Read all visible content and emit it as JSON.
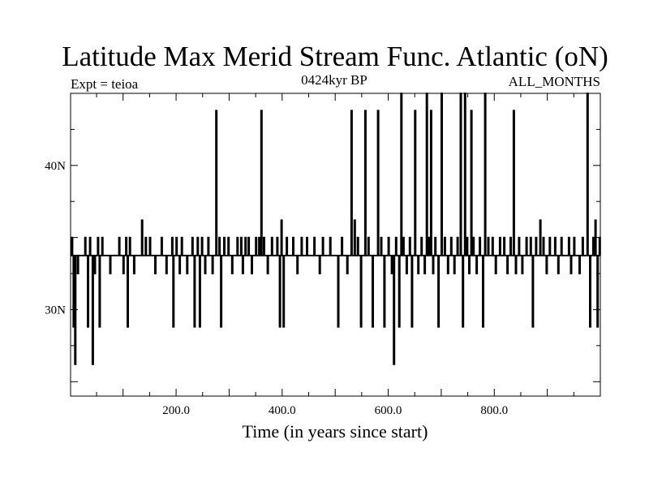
{
  "chart_data": {
    "type": "line",
    "title": "Latitude Max Merid Stream Func. Atlantic (oN)",
    "subtitle_left": "Expt = teioa",
    "subtitle_center": "0424kyr BP",
    "subtitle_right": "ALL_MONTHS",
    "xlabel": "Time (in years since start)",
    "ylabel": "",
    "xlim": [
      1,
      1000
    ],
    "ylim": [
      24,
      45
    ],
    "x_ticks": [
      {
        "value": 200,
        "label": "200.0"
      },
      {
        "value": 400,
        "label": "400.0"
      },
      {
        "value": 600,
        "label": "600.0"
      },
      {
        "value": 800,
        "label": "800.0"
      }
    ],
    "y_ticks": [
      {
        "value": 30,
        "label": "30N"
      },
      {
        "value": 40,
        "label": "40N"
      }
    ],
    "baseline": 33.75,
    "series": [
      {
        "color": "#000000",
        "excursions": [
          [
            3,
            35
          ],
          [
            6,
            28.8
          ],
          [
            9,
            26.2
          ],
          [
            14,
            32.5
          ],
          [
            28,
            35
          ],
          [
            33,
            28.8
          ],
          [
            37,
            35
          ],
          [
            42,
            26.2
          ],
          [
            46,
            32.5
          ],
          [
            52,
            35
          ],
          [
            55,
            28.8
          ],
          [
            60,
            35
          ],
          [
            75,
            32.5
          ],
          [
            92,
            35
          ],
          [
            100,
            32.5
          ],
          [
            105,
            35
          ],
          [
            108,
            28.8
          ],
          [
            112,
            35
          ],
          [
            120,
            32.5
          ],
          [
            135,
            36.2
          ],
          [
            142,
            35
          ],
          [
            150,
            35
          ],
          [
            160,
            32.5
          ],
          [
            172,
            35
          ],
          [
            181,
            32.5
          ],
          [
            192,
            35
          ],
          [
            194,
            28.8
          ],
          [
            200,
            35
          ],
          [
            206,
            32.5
          ],
          [
            210,
            35
          ],
          [
            220,
            32.5
          ],
          [
            230,
            35
          ],
          [
            234,
            28.8
          ],
          [
            240,
            35
          ],
          [
            244,
            28.8
          ],
          [
            248,
            35
          ],
          [
            254,
            32.5
          ],
          [
            260,
            35
          ],
          [
            268,
            32.5
          ],
          [
            275,
            43.8
          ],
          [
            281,
            35
          ],
          [
            284,
            28.8
          ],
          [
            290,
            35
          ],
          [
            298,
            35
          ],
          [
            305,
            32.5
          ],
          [
            315,
            35
          ],
          [
            322,
            35
          ],
          [
            325,
            32.5
          ],
          [
            330,
            35
          ],
          [
            336,
            35
          ],
          [
            342,
            32.5
          ],
          [
            350,
            35
          ],
          [
            356,
            35
          ],
          [
            360,
            43.8
          ],
          [
            365,
            35
          ],
          [
            372,
            32.5
          ],
          [
            380,
            35
          ],
          [
            390,
            35
          ],
          [
            395,
            28.8
          ],
          [
            398,
            36.2
          ],
          [
            402,
            28.8
          ],
          [
            408,
            35
          ],
          [
            420,
            35
          ],
          [
            428,
            32.5
          ],
          [
            436,
            35
          ],
          [
            446,
            35
          ],
          [
            460,
            35
          ],
          [
            470,
            32.5
          ],
          [
            476,
            35
          ],
          [
            490,
            35
          ],
          [
            505,
            28.8
          ],
          [
            512,
            35
          ],
          [
            522,
            32.5
          ],
          [
            530,
            43.8
          ],
          [
            536,
            36.2
          ],
          [
            542,
            35
          ],
          [
            548,
            28.8
          ],
          [
            556,
            43.8
          ],
          [
            562,
            35
          ],
          [
            570,
            28.8
          ],
          [
            580,
            43.8
          ],
          [
            586,
            35
          ],
          [
            592,
            28.8
          ],
          [
            600,
            35
          ],
          [
            606,
            32.5
          ],
          [
            610,
            26.2
          ],
          [
            614,
            35
          ],
          [
            620,
            28.8
          ],
          [
            624,
            45
          ],
          [
            628,
            35
          ],
          [
            634,
            32.5
          ],
          [
            640,
            35
          ],
          [
            644,
            28.8
          ],
          [
            650,
            43.8
          ],
          [
            656,
            32.5
          ],
          [
            662,
            35
          ],
          [
            668,
            32.5
          ],
          [
            672,
            45
          ],
          [
            676,
            35
          ],
          [
            680,
            43.8
          ],
          [
            684,
            32.5
          ],
          [
            688,
            35
          ],
          [
            694,
            28.8
          ],
          [
            700,
            45
          ],
          [
            706,
            35
          ],
          [
            712,
            32.5
          ],
          [
            718,
            35
          ],
          [
            724,
            32.5
          ],
          [
            730,
            35
          ],
          [
            736,
            45
          ],
          [
            740,
            28.8
          ],
          [
            744,
            45
          ],
          [
            748,
            35
          ],
          [
            752,
            32.5
          ],
          [
            756,
            43.8
          ],
          [
            760,
            35
          ],
          [
            766,
            32.5
          ],
          [
            772,
            35
          ],
          [
            778,
            28.8
          ],
          [
            782,
            45
          ],
          [
            788,
            35
          ],
          [
            796,
            35
          ],
          [
            802,
            32.5
          ],
          [
            810,
            35
          ],
          [
            818,
            35
          ],
          [
            824,
            32.5
          ],
          [
            830,
            35
          ],
          [
            836,
            43.8
          ],
          [
            840,
            32.5
          ],
          [
            846,
            35
          ],
          [
            852,
            32.5
          ],
          [
            860,
            35
          ],
          [
            868,
            35
          ],
          [
            872,
            28.8
          ],
          [
            878,
            35
          ],
          [
            886,
            36.2
          ],
          [
            892,
            35
          ],
          [
            898,
            32.5
          ],
          [
            904,
            35
          ],
          [
            914,
            35
          ],
          [
            920,
            32.5
          ],
          [
            926,
            35
          ],
          [
            940,
            35
          ],
          [
            944,
            32.5
          ],
          [
            950,
            35
          ],
          [
            960,
            32.5
          ],
          [
            966,
            35
          ],
          [
            975,
            45
          ],
          [
            980,
            28.8
          ],
          [
            986,
            35
          ],
          [
            990,
            36.2
          ],
          [
            994,
            28.8
          ],
          [
            998,
            35
          ]
        ]
      }
    ]
  }
}
